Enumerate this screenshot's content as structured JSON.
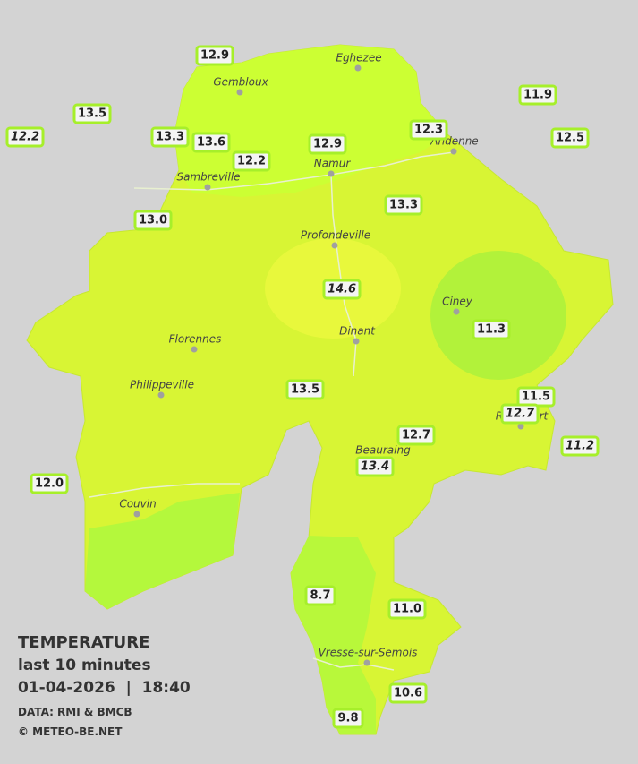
{
  "legend": {
    "title": "TEMPERATURE",
    "period": "last 10 minutes",
    "datetime": "01-04-2026  |  18:40",
    "source": "DATA: RMI & BMCB",
    "credit": "© METEO-BE.NET"
  },
  "towns": [
    {
      "name": "Eghezee"
    },
    {
      "name": "Gembloux"
    },
    {
      "name": "Andenne"
    },
    {
      "name": "Namur"
    },
    {
      "name": "Sambreville"
    },
    {
      "name": "Profondeville"
    },
    {
      "name": "Ciney"
    },
    {
      "name": "Dinant"
    },
    {
      "name": "Florennes"
    },
    {
      "name": "Philippeville"
    },
    {
      "name": "Rochefort"
    },
    {
      "name": "Beauraing"
    },
    {
      "name": "Couvin"
    },
    {
      "name": "Vresse-sur-Semois"
    }
  ],
  "stations": [
    {
      "label": "12.9",
      "italic": false
    },
    {
      "label": "13.5",
      "italic": false
    },
    {
      "label": "12.2",
      "italic": true
    },
    {
      "label": "13.3",
      "italic": false
    },
    {
      "label": "13.6",
      "italic": false
    },
    {
      "label": "12.2",
      "italic": false
    },
    {
      "label": "12.9",
      "italic": false
    },
    {
      "label": "12.3",
      "italic": false
    },
    {
      "label": "11.9",
      "italic": false
    },
    {
      "label": "12.5",
      "italic": false
    },
    {
      "label": "13.0",
      "italic": false
    },
    {
      "label": "13.3",
      "italic": false
    },
    {
      "label": "14.6",
      "italic": true
    },
    {
      "label": "11.3",
      "italic": false
    },
    {
      "label": "13.5",
      "italic": false
    },
    {
      "label": "11.5",
      "italic": false
    },
    {
      "label": "12.7",
      "italic": true
    },
    {
      "label": "11.2",
      "italic": true
    },
    {
      "label": "12.7",
      "italic": false
    },
    {
      "label": "13.4",
      "italic": true
    },
    {
      "label": "12.0",
      "italic": false
    },
    {
      "label": "8.7",
      "italic": false
    },
    {
      "label": "11.0",
      "italic": false
    },
    {
      "label": "10.6",
      "italic": false
    },
    {
      "label": "9.8",
      "italic": false
    }
  ]
}
